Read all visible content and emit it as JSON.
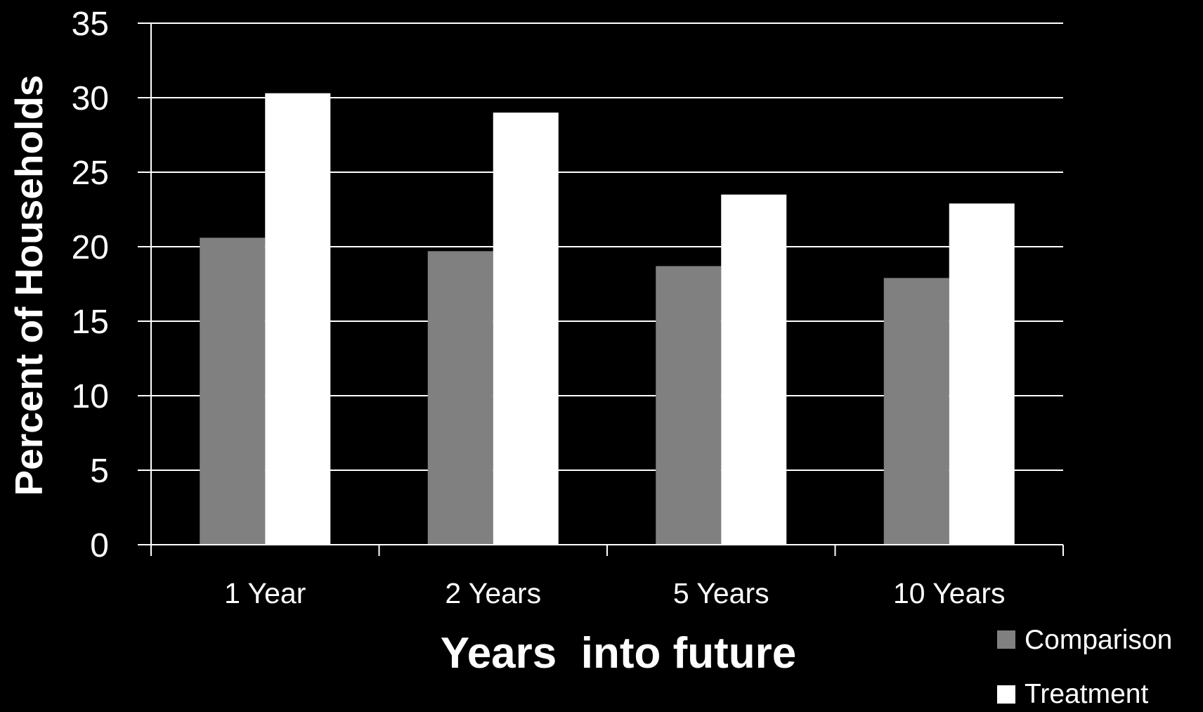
{
  "chart_data": {
    "type": "bar",
    "title": "",
    "xlabel": "Years  into future",
    "ylabel": "Percent of Households",
    "categories": [
      "1 Year",
      "2 Years",
      "5 Years",
      "10 Years"
    ],
    "series": [
      {
        "name": "Comparison",
        "values": [
          20.6,
          19.7,
          18.7,
          17.9
        ],
        "color": "#808080"
      },
      {
        "name": "Treatment",
        "values": [
          30.3,
          29.0,
          23.5,
          22.9
        ],
        "color": "#ffffff"
      }
    ],
    "ylim": [
      0,
      35
    ],
    "yticks": [
      "0",
      "5",
      "10",
      "15",
      "20",
      "25",
      "30",
      "35"
    ],
    "grid": true,
    "legend_position": "bottom-right",
    "colors": {
      "background": "#000000",
      "gridline": "#ffffff",
      "axis": "#ffffff",
      "text": "#ffffff"
    }
  }
}
